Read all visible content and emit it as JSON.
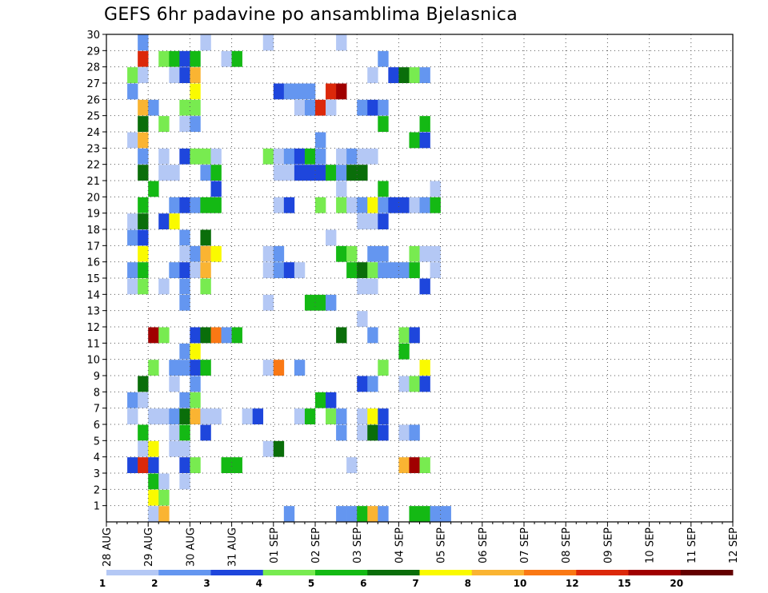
{
  "chart_data": {
    "type": "heatmap",
    "title": "GEFS 6hr padavine po ansamblima Bjelasnica",
    "xlabel": "",
    "ylabel": "",
    "x_ticks": [
      "28 AUG",
      "29 AUG",
      "30 AUG",
      "31 AUG",
      "01 SEP",
      "02 SEP",
      "03 SEP",
      "04 SEP",
      "05 SEP",
      "06 SEP",
      "07 SEP",
      "08 SEP",
      "09 SEP",
      "10 SEP",
      "11 SEP",
      "12 SEP"
    ],
    "x_range": [
      0,
      60
    ],
    "x_step": "6hr",
    "y_ticks": [
      1,
      2,
      3,
      4,
      5,
      6,
      7,
      8,
      9,
      10,
      11,
      12,
      13,
      14,
      15,
      16,
      17,
      18,
      19,
      20,
      21,
      22,
      23,
      24,
      25,
      26,
      27,
      28,
      29,
      30
    ],
    "y_range": [
      0,
      30
    ],
    "grid": true,
    "colorbar": {
      "labels": [
        "1",
        "2",
        "3",
        "4",
        "5",
        "6",
        "7",
        "8",
        "10",
        "12",
        "15",
        "20"
      ],
      "colors": [
        "#b4c8f5",
        "#6496f0",
        "#1e46dc",
        "#78eb50",
        "#14b914",
        "#0a6e0a",
        "#fafa00",
        "#fab432",
        "#fa7814",
        "#dc280a",
        "#a00000",
        "#640000"
      ]
    },
    "series": [
      {
        "member": 1,
        "cells": [
          [
            4,
            0
          ],
          [
            5,
            7
          ],
          [
            17,
            1
          ],
          [
            22,
            1
          ],
          [
            23,
            1
          ],
          [
            24,
            4
          ],
          [
            25,
            7
          ],
          [
            26,
            1
          ],
          [
            29,
            4
          ],
          [
            30,
            4
          ],
          [
            31,
            1
          ],
          [
            32,
            1
          ]
        ]
      },
      {
        "member": 2,
        "cells": [
          [
            4,
            6
          ],
          [
            5,
            3
          ]
        ]
      },
      {
        "member": 3,
        "cells": [
          [
            4,
            4
          ],
          [
            5,
            0
          ],
          [
            7,
            0
          ]
        ]
      },
      {
        "member": 4,
        "cells": [
          [
            2,
            2
          ],
          [
            3,
            9
          ],
          [
            4,
            2
          ],
          [
            7,
            2
          ],
          [
            8,
            3
          ],
          [
            11,
            4
          ],
          [
            12,
            4
          ],
          [
            23,
            0
          ],
          [
            28,
            7
          ],
          [
            29,
            10
          ],
          [
            30,
            3
          ]
        ]
      },
      {
        "member": 5,
        "cells": [
          [
            3,
            0
          ],
          [
            4,
            6
          ],
          [
            6,
            0
          ],
          [
            7,
            0
          ],
          [
            15,
            0
          ],
          [
            16,
            5
          ]
        ]
      },
      {
        "member": 6,
        "cells": [
          [
            3,
            4
          ],
          [
            6,
            0
          ],
          [
            7,
            4
          ],
          [
            9,
            2
          ],
          [
            22,
            1
          ],
          [
            24,
            0
          ],
          [
            25,
            5
          ],
          [
            26,
            2
          ],
          [
            28,
            0
          ],
          [
            29,
            1
          ]
        ]
      },
      {
        "member": 7,
        "cells": [
          [
            2,
            0
          ],
          [
            4,
            0
          ],
          [
            5,
            0
          ],
          [
            6,
            1
          ],
          [
            7,
            5
          ],
          [
            8,
            7
          ],
          [
            9,
            0
          ],
          [
            10,
            0
          ],
          [
            13,
            0
          ],
          [
            14,
            2
          ],
          [
            18,
            0
          ],
          [
            19,
            4
          ],
          [
            21,
            3
          ],
          [
            22,
            1
          ],
          [
            24,
            0
          ],
          [
            25,
            6
          ],
          [
            26,
            2
          ]
        ]
      },
      {
        "member": 8,
        "cells": [
          [
            2,
            1
          ],
          [
            3,
            0
          ],
          [
            7,
            1
          ],
          [
            8,
            3
          ],
          [
            20,
            4
          ],
          [
            21,
            2
          ]
        ]
      },
      {
        "member": 9,
        "cells": [
          [
            3,
            5
          ],
          [
            6,
            0
          ],
          [
            8,
            1
          ],
          [
            24,
            2
          ],
          [
            25,
            1
          ],
          [
            28,
            0
          ],
          [
            29,
            3
          ],
          [
            30,
            2
          ]
        ]
      },
      {
        "member": 10,
        "cells": [
          [
            4,
            3
          ],
          [
            6,
            1
          ],
          [
            7,
            1
          ],
          [
            8,
            2
          ],
          [
            9,
            4
          ],
          [
            15,
            0
          ],
          [
            16,
            8
          ],
          [
            18,
            1
          ],
          [
            26,
            3
          ],
          [
            30,
            6
          ]
        ]
      },
      {
        "member": 11,
        "cells": [
          [
            7,
            1
          ],
          [
            8,
            6
          ],
          [
            28,
            4
          ]
        ]
      },
      {
        "member": 12,
        "cells": [
          [
            4,
            10
          ],
          [
            5,
            3
          ],
          [
            8,
            2
          ],
          [
            9,
            5
          ],
          [
            10,
            8
          ],
          [
            11,
            1
          ],
          [
            12,
            4
          ],
          [
            22,
            5
          ],
          [
            25,
            1
          ],
          [
            28,
            3
          ],
          [
            29,
            2
          ]
        ]
      },
      {
        "member": 13,
        "cells": [
          [
            24,
            0
          ]
        ]
      },
      {
        "member": 14,
        "cells": [
          [
            7,
            1
          ],
          [
            15,
            0
          ],
          [
            19,
            4
          ],
          [
            20,
            4
          ],
          [
            21,
            1
          ]
        ]
      },
      {
        "member": 15,
        "cells": [
          [
            2,
            0
          ],
          [
            3,
            3
          ],
          [
            5,
            0
          ],
          [
            7,
            1
          ],
          [
            9,
            3
          ],
          [
            24,
            0
          ],
          [
            25,
            0
          ],
          [
            30,
            2
          ]
        ]
      },
      {
        "member": 16,
        "cells": [
          [
            2,
            1
          ],
          [
            3,
            4
          ],
          [
            6,
            1
          ],
          [
            7,
            2
          ],
          [
            8,
            0
          ],
          [
            9,
            7
          ],
          [
            15,
            0
          ],
          [
            16,
            1
          ],
          [
            17,
            2
          ],
          [
            18,
            0
          ],
          [
            23,
            4
          ],
          [
            24,
            5
          ],
          [
            25,
            3
          ],
          [
            26,
            1
          ],
          [
            27,
            1
          ],
          [
            28,
            1
          ],
          [
            29,
            4
          ],
          [
            31,
            0
          ]
        ]
      },
      {
        "member": 17,
        "cells": [
          [
            3,
            6
          ],
          [
            7,
            0
          ],
          [
            8,
            1
          ],
          [
            9,
            7
          ],
          [
            10,
            6
          ],
          [
            15,
            0
          ],
          [
            16,
            1
          ],
          [
            22,
            4
          ],
          [
            23,
            3
          ],
          [
            25,
            1
          ],
          [
            26,
            1
          ],
          [
            29,
            3
          ],
          [
            30,
            0
          ],
          [
            31,
            0
          ]
        ]
      },
      {
        "member": 18,
        "cells": [
          [
            2,
            1
          ],
          [
            3,
            2
          ],
          [
            7,
            1
          ],
          [
            9,
            5
          ],
          [
            21,
            0
          ]
        ]
      },
      {
        "member": 19,
        "cells": [
          [
            2,
            0
          ],
          [
            3,
            5
          ],
          [
            5,
            2
          ],
          [
            6,
            6
          ],
          [
            24,
            0
          ],
          [
            25,
            0
          ],
          [
            26,
            2
          ]
        ]
      },
      {
        "member": 20,
        "cells": [
          [
            3,
            4
          ],
          [
            6,
            1
          ],
          [
            7,
            2
          ],
          [
            8,
            1
          ],
          [
            9,
            4
          ],
          [
            10,
            4
          ],
          [
            16,
            0
          ],
          [
            17,
            2
          ],
          [
            20,
            3
          ],
          [
            22,
            3
          ],
          [
            23,
            0
          ],
          [
            24,
            1
          ],
          [
            25,
            6
          ],
          [
            26,
            1
          ],
          [
            27,
            2
          ],
          [
            28,
            2
          ],
          [
            29,
            0
          ],
          [
            30,
            1
          ],
          [
            31,
            4
          ]
        ]
      },
      {
        "member": 21,
        "cells": [
          [
            4,
            4
          ],
          [
            10,
            2
          ],
          [
            22,
            0
          ],
          [
            26,
            4
          ],
          [
            31,
            0
          ]
        ]
      },
      {
        "member": 22,
        "cells": [
          [
            3,
            5
          ],
          [
            5,
            0
          ],
          [
            6,
            0
          ],
          [
            9,
            1
          ],
          [
            10,
            4
          ],
          [
            16,
            0
          ],
          [
            17,
            0
          ],
          [
            18,
            2
          ],
          [
            19,
            2
          ],
          [
            20,
            2
          ],
          [
            21,
            4
          ],
          [
            22,
            1
          ],
          [
            23,
            5
          ],
          [
            24,
            5
          ]
        ]
      },
      {
        "member": 23,
        "cells": [
          [
            3,
            1
          ],
          [
            5,
            0
          ],
          [
            7,
            2
          ],
          [
            8,
            3
          ],
          [
            9,
            3
          ],
          [
            10,
            0
          ],
          [
            15,
            3
          ],
          [
            16,
            0
          ],
          [
            17,
            1
          ],
          [
            18,
            2
          ],
          [
            19,
            4
          ],
          [
            20,
            1
          ],
          [
            22,
            0
          ],
          [
            23,
            1
          ],
          [
            24,
            0
          ],
          [
            25,
            0
          ]
        ]
      },
      {
        "member": 24,
        "cells": [
          [
            2,
            0
          ],
          [
            3,
            7
          ],
          [
            20,
            1
          ],
          [
            29,
            4
          ],
          [
            30,
            2
          ]
        ]
      },
      {
        "member": 25,
        "cells": [
          [
            3,
            5
          ],
          [
            5,
            3
          ],
          [
            7,
            0
          ],
          [
            8,
            1
          ],
          [
            26,
            4
          ],
          [
            30,
            4
          ]
        ]
      },
      {
        "member": 26,
        "cells": [
          [
            3,
            7
          ],
          [
            4,
            1
          ],
          [
            7,
            3
          ],
          [
            8,
            3
          ],
          [
            18,
            0
          ],
          [
            19,
            1
          ],
          [
            20,
            9
          ],
          [
            21,
            0
          ],
          [
            24,
            1
          ],
          [
            25,
            2
          ],
          [
            26,
            1
          ]
        ]
      },
      {
        "member": 27,
        "cells": [
          [
            2,
            1
          ],
          [
            8,
            6
          ],
          [
            16,
            2
          ],
          [
            17,
            1
          ],
          [
            18,
            1
          ],
          [
            19,
            1
          ],
          [
            21,
            9
          ],
          [
            22,
            10
          ]
        ]
      },
      {
        "member": 28,
        "cells": [
          [
            2,
            3
          ],
          [
            3,
            0
          ],
          [
            6,
            0
          ],
          [
            7,
            2
          ],
          [
            8,
            7
          ],
          [
            25,
            0
          ],
          [
            27,
            2
          ],
          [
            28,
            5
          ],
          [
            29,
            3
          ],
          [
            30,
            1
          ]
        ]
      },
      {
        "member": 29,
        "cells": [
          [
            3,
            9
          ],
          [
            5,
            3
          ],
          [
            6,
            4
          ],
          [
            7,
            2
          ],
          [
            8,
            4
          ],
          [
            11,
            0
          ],
          [
            12,
            4
          ],
          [
            26,
            1
          ]
        ]
      },
      {
        "member": 30,
        "cells": [
          [
            3,
            1
          ],
          [
            9,
            0
          ],
          [
            15,
            0
          ],
          [
            22,
            0
          ]
        ]
      }
    ]
  }
}
